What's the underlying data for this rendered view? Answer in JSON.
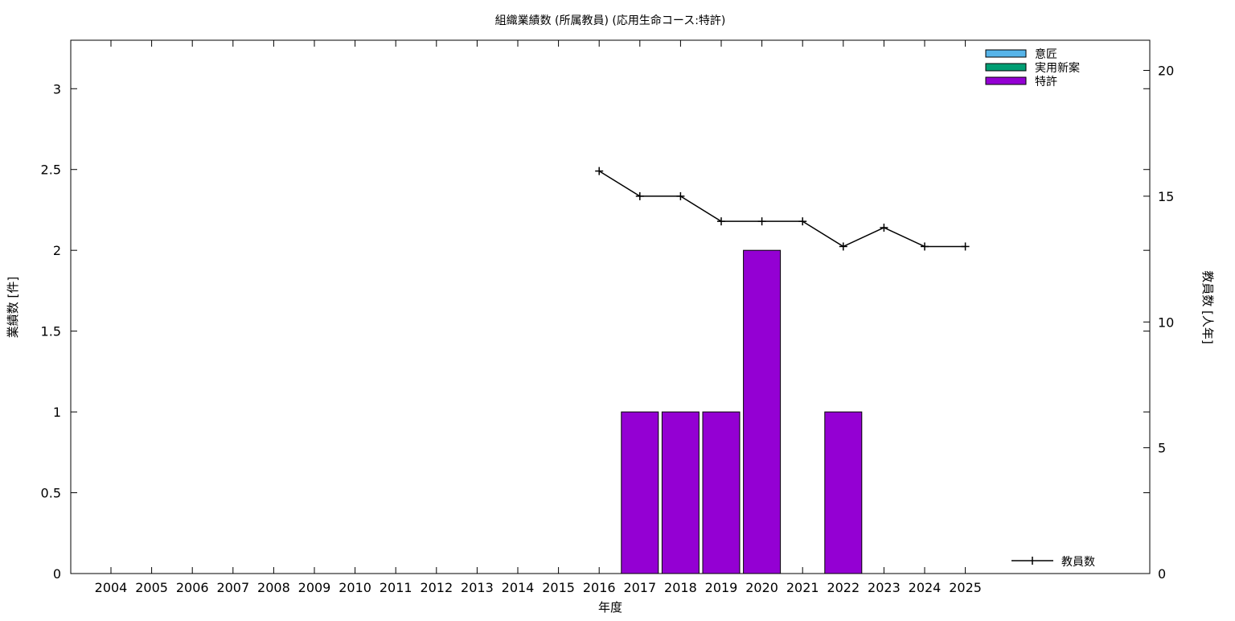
{
  "chart_data": {
    "type": "bar",
    "title": "組織業績数 (所属教員) (応用生命コース:特許)",
    "xlabel": "年度",
    "ylabel": "業績数 [件]",
    "y2label": "教員数 [人年]",
    "categories": [
      "2004",
      "2005",
      "2006",
      "2007",
      "2008",
      "2009",
      "2010",
      "2011",
      "2012",
      "2013",
      "2014",
      "2015",
      "2016",
      "2017",
      "2018",
      "2019",
      "2020",
      "2021",
      "2022",
      "2023",
      "2024",
      "2025"
    ],
    "ylim": [
      0,
      3.3
    ],
    "yticks": [
      "0",
      "0.5",
      "1",
      "1.5",
      "2",
      "2.5",
      "3"
    ],
    "y2lim": [
      0,
      21.2
    ],
    "y2ticks": [
      "0",
      "5",
      "10",
      "15",
      "20"
    ],
    "grid": false,
    "legend_position": "top-right",
    "series": [
      {
        "name": "意匠",
        "kind": "bar",
        "color": "#56b4e9",
        "values": [
          0,
          0,
          0,
          0,
          0,
          0,
          0,
          0,
          0,
          0,
          0,
          0,
          0,
          0,
          0,
          0,
          0,
          0,
          0,
          0,
          0,
          0
        ]
      },
      {
        "name": "実用新案",
        "kind": "bar",
        "color": "#009e73",
        "values": [
          0,
          0,
          0,
          0,
          0,
          0,
          0,
          0,
          0,
          0,
          0,
          0,
          0,
          0,
          0,
          0,
          0,
          0,
          0,
          0,
          0,
          0
        ]
      },
      {
        "name": "特許",
        "kind": "bar",
        "color": "#9400d3",
        "values": [
          0,
          0,
          0,
          0,
          0,
          0,
          0,
          0,
          0,
          0,
          0,
          0,
          0,
          1,
          1,
          1,
          2,
          0,
          1,
          0,
          0,
          0
        ]
      },
      {
        "name": "教員数",
        "kind": "line",
        "axis": "y2",
        "color": "#000000",
        "legend_position": "bottom-right",
        "values": [
          null,
          null,
          null,
          null,
          null,
          null,
          null,
          null,
          null,
          null,
          null,
          null,
          16,
          15,
          15,
          14,
          14,
          14,
          13,
          13.75,
          13,
          13
        ]
      }
    ]
  }
}
